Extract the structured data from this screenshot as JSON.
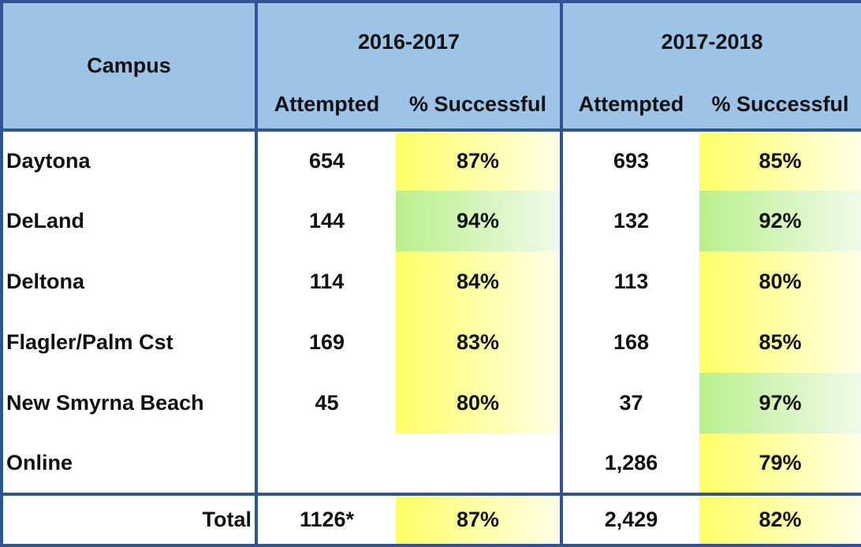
{
  "table": {
    "header": {
      "campus": "Campus",
      "years": [
        "2016-2017",
        "2017-2018"
      ],
      "sub": [
        "Attempted",
        "% Successful",
        "Attempted",
        "% Successful"
      ]
    },
    "rows": [
      [
        "Daytona",
        "654",
        "87%",
        "693",
        "85%"
      ],
      [
        "DeLand",
        "144",
        "94%",
        "132",
        "92%"
      ],
      [
        "Deltona",
        "114",
        "84%",
        "113",
        "80%"
      ],
      [
        "Flagler/Palm Cst",
        "169",
        "83%",
        "168",
        "85%"
      ],
      [
        "New Smyrna Beach",
        "45",
        "80%",
        "37",
        "97%"
      ],
      [
        "Online",
        null,
        null,
        "1,286",
        "79%"
      ]
    ],
    "total": [
      "Total",
      "1126*",
      "87%",
      "2,429",
      "82%"
    ]
  }
}
